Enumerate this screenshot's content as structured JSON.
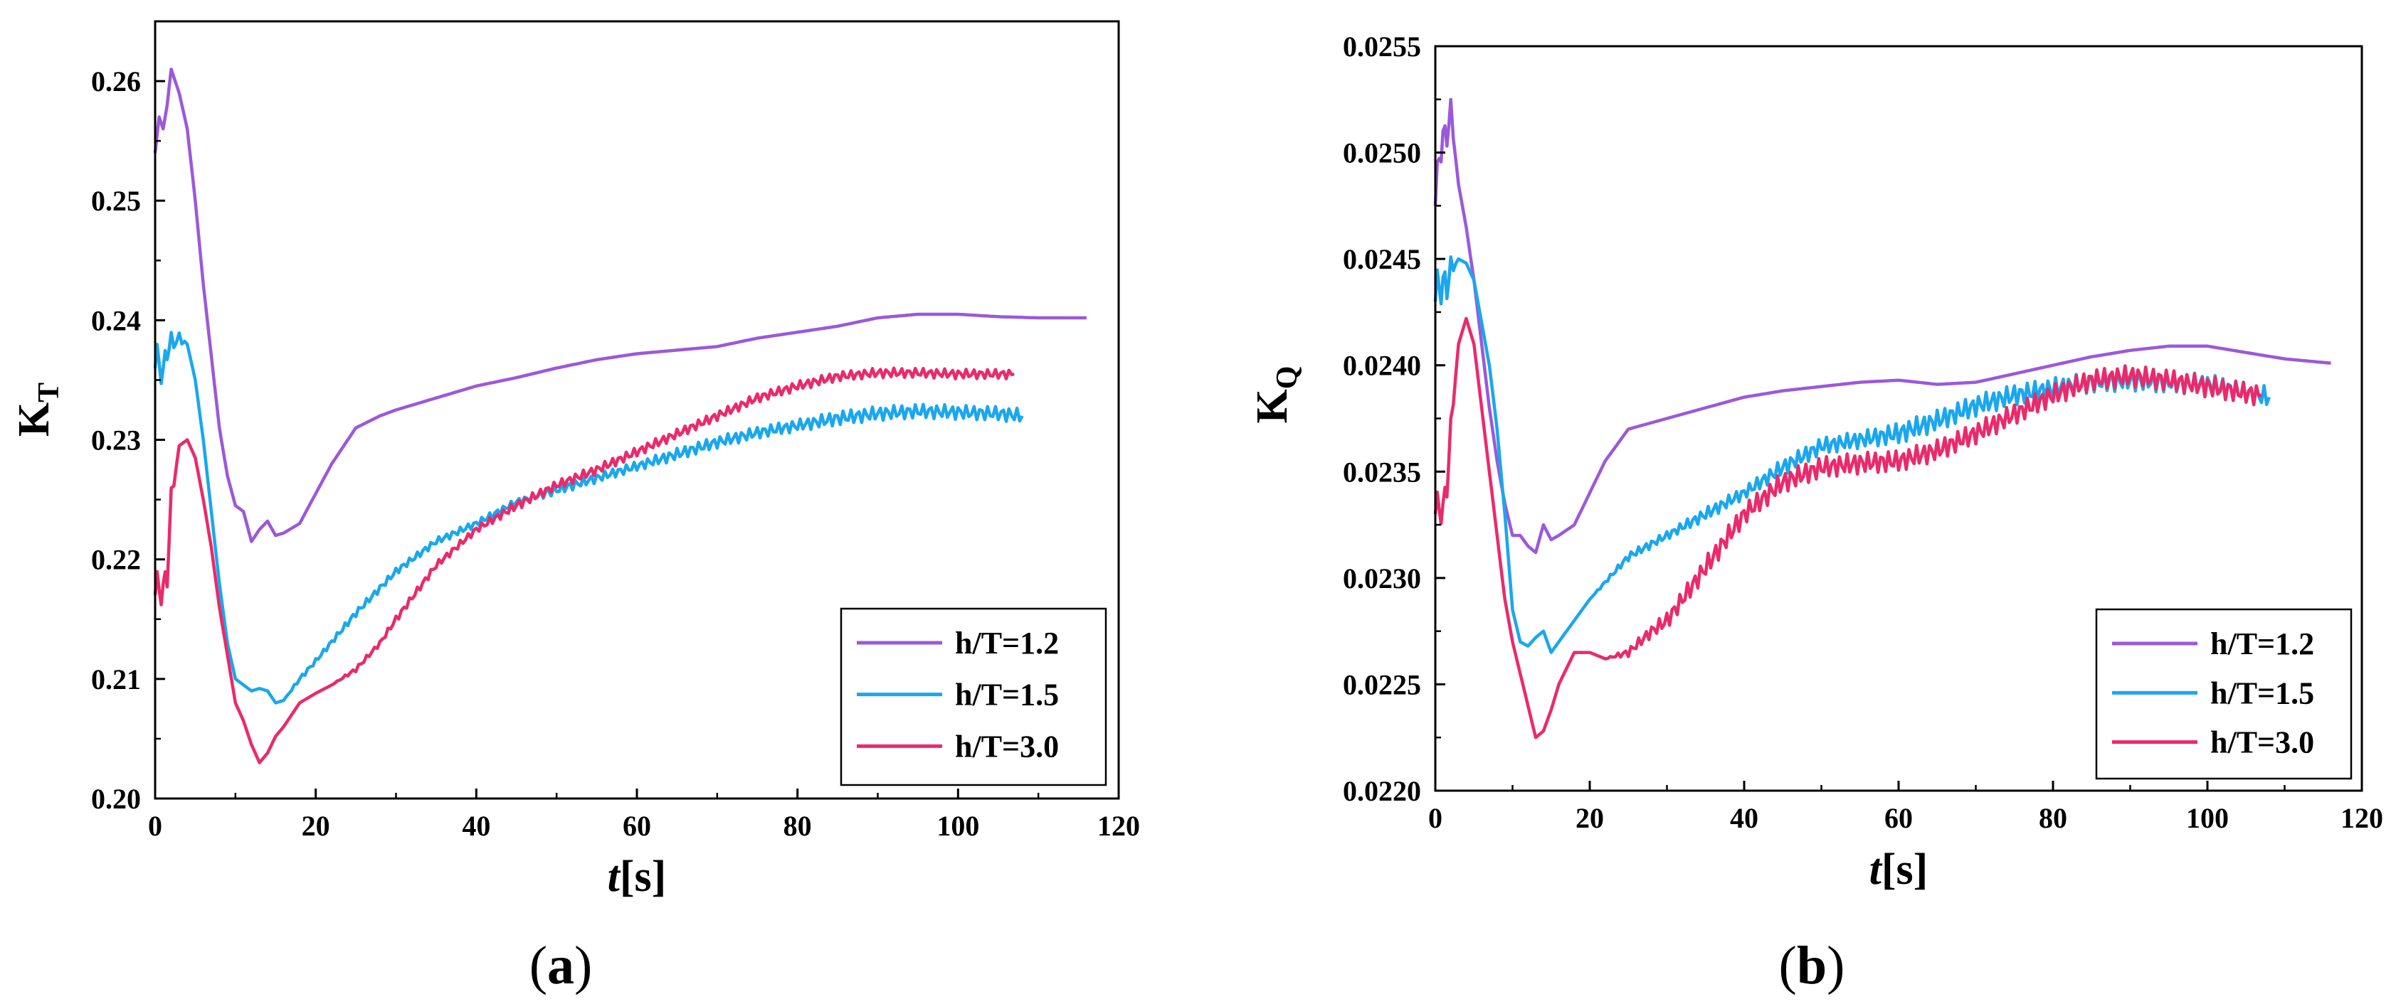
{
  "colors": {
    "h12": "#9b59d9",
    "h15": "#1aa7ee",
    "h30": "#ea2a6b",
    "axis": "#000000"
  },
  "chart_data": [
    {
      "type": "line",
      "panel_label": "(a)",
      "panel_parts": [
        "(",
        "a",
        ")"
      ],
      "xlabel_italic": "t",
      "xlabel_unit": "[s]",
      "ylabel_main": "K",
      "ylabel_sub": "T",
      "xlim": [
        0,
        120
      ],
      "ylim": [
        0.2,
        0.265
      ],
      "xticks": [
        0,
        20,
        40,
        60,
        80,
        100,
        120
      ],
      "xtick_labels": [
        "0",
        "20",
        "40",
        "60",
        "80",
        "100",
        "120"
      ],
      "yticks": [
        0.2,
        0.21,
        0.22,
        0.23,
        0.24,
        0.25,
        0.26
      ],
      "ytick_labels": [
        "0.20",
        "0.21",
        "0.22",
        "0.23",
        "0.24",
        "0.25",
        "0.26"
      ],
      "legend_position": "bottom-right",
      "series": [
        {
          "name": "h/T=1.2",
          "color": "#9b59d9",
          "x": [
            0,
            0.5,
            1,
            1.5,
            2,
            3,
            4,
            5,
            6,
            7,
            8,
            9,
            10,
            11,
            12,
            13,
            14,
            15,
            16,
            18,
            20,
            22,
            25,
            28,
            30,
            35,
            40,
            45,
            50,
            55,
            60,
            65,
            70,
            75,
            80,
            85,
            90,
            95,
            100,
            105,
            110,
            116
          ],
          "y": [
            0.254,
            0.257,
            0.256,
            0.258,
            0.261,
            0.259,
            0.256,
            0.25,
            0.243,
            0.237,
            0.231,
            0.227,
            0.2245,
            0.224,
            0.2215,
            0.2225,
            0.2232,
            0.222,
            0.2222,
            0.223,
            0.2255,
            0.228,
            0.231,
            0.232,
            0.2325,
            0.2335,
            0.2345,
            0.2352,
            0.236,
            0.2367,
            0.2372,
            0.2375,
            0.2378,
            0.2385,
            0.239,
            0.2395,
            0.2402,
            0.2405,
            0.2405,
            0.2403,
            0.2402,
            0.2402
          ],
          "osc": [
            0,
            0,
            0,
            0,
            0,
            0,
            0,
            0,
            0,
            0,
            0,
            0,
            0,
            0,
            0,
            0,
            0,
            0,
            0,
            0,
            0,
            0,
            0,
            0,
            0,
            0,
            0,
            0,
            0,
            0,
            0,
            0,
            0,
            0,
            0,
            0,
            0,
            0,
            0,
            0,
            0,
            0
          ]
        },
        {
          "name": "h/T=1.5",
          "color": "#1aa7ee",
          "x": [
            0,
            0.5,
            1,
            1.5,
            2,
            3,
            4,
            5,
            6,
            7,
            8,
            9,
            10,
            11,
            12,
            13,
            14,
            15,
            16,
            18,
            20,
            25,
            30,
            35,
            40,
            45,
            50,
            55,
            60,
            65,
            70,
            75,
            80,
            85,
            90,
            95,
            100,
            105,
            108
          ],
          "y": [
            0.236,
            0.237,
            0.235,
            0.238,
            0.238,
            0.2385,
            0.238,
            0.235,
            0.23,
            0.224,
            0.218,
            0.213,
            0.21,
            0.2095,
            0.209,
            0.2092,
            0.209,
            0.208,
            0.2082,
            0.21,
            0.2115,
            0.2155,
            0.219,
            0.2215,
            0.223,
            0.2248,
            0.2258,
            0.2268,
            0.2278,
            0.2288,
            0.2298,
            0.2306,
            0.2312,
            0.2318,
            0.2322,
            0.2324,
            0.2323,
            0.2322,
            0.232
          ],
          "osc": [
            0.0015,
            0.0015,
            0.0015,
            0.0015,
            0.001,
            0.0005,
            0,
            0,
            0,
            0,
            0,
            0,
            0,
            0,
            0,
            0,
            0,
            0,
            0,
            0.0002,
            0.0002,
            0.0003,
            0.0003,
            0.0003,
            0.0003,
            0.0003,
            0.0004,
            0.0004,
            0.0004,
            0.0005,
            0.0005,
            0.0005,
            0.0005,
            0.0006,
            0.0006,
            0.0006,
            0.0006,
            0.0006,
            0.0006
          ]
        },
        {
          "name": "h/T=3.0",
          "color": "#ea2a6b",
          "x": [
            0,
            0.5,
            1,
            1.5,
            2,
            3,
            4,
            5,
            6,
            7,
            8,
            9,
            10,
            11,
            12,
            13,
            14,
            15,
            16,
            18,
            20,
            22,
            25,
            28,
            30,
            35,
            40,
            45,
            50,
            55,
            60,
            65,
            70,
            75,
            80,
            85,
            90,
            95,
            100,
            105,
            107
          ],
          "y": [
            0.217,
            0.218,
            0.217,
            0.219,
            0.225,
            0.2295,
            0.23,
            0.2285,
            0.225,
            0.221,
            0.216,
            0.212,
            0.208,
            0.2065,
            0.2045,
            0.203,
            0.2038,
            0.2052,
            0.206,
            0.208,
            0.2088,
            0.2095,
            0.2108,
            0.213,
            0.215,
            0.2195,
            0.2225,
            0.2245,
            0.2262,
            0.2275,
            0.229,
            0.2305,
            0.232,
            0.2335,
            0.2345,
            0.2353,
            0.2356,
            0.2356,
            0.2355,
            0.2355,
            0.2355
          ],
          "osc": [
            0.0015,
            0.0015,
            0.0015,
            0.0015,
            0.001,
            0,
            0,
            0,
            0,
            0,
            0,
            0,
            0,
            0,
            0,
            0,
            0,
            0,
            0,
            0,
            0,
            0,
            0.0002,
            0.0002,
            0.0003,
            0.0003,
            0.0003,
            0.0004,
            0.0004,
            0.0004,
            0.0004,
            0.0004,
            0.0004,
            0.0004,
            0.0004,
            0.0004,
            0.0004,
            0.0004,
            0.0004,
            0.0004,
            0.0004
          ]
        }
      ]
    },
    {
      "type": "line",
      "panel_label": "(b)",
      "panel_parts": [
        "(",
        "b",
        ")"
      ],
      "xlabel_italic": "t",
      "xlabel_unit": "[s]",
      "ylabel_main": "K",
      "ylabel_sub": "Q",
      "xlim": [
        0,
        120
      ],
      "ylim": [
        0.022,
        0.0255
      ],
      "xticks": [
        0,
        20,
        40,
        60,
        80,
        100,
        120
      ],
      "xtick_labels": [
        "0",
        "20",
        "40",
        "60",
        "80",
        "100",
        "120"
      ],
      "yticks": [
        0.022,
        0.0225,
        0.023,
        0.0235,
        0.024,
        0.0245,
        0.025,
        0.0255
      ],
      "ytick_labels": [
        "0.0220",
        "0.0225",
        "0.0230",
        "0.0235",
        "0.0240",
        "0.0245",
        "0.0250",
        "0.0255"
      ],
      "legend_position": "bottom-right",
      "series": [
        {
          "name": "h/T=1.2",
          "color": "#9b59d9",
          "x": [
            0,
            0.5,
            1,
            1.5,
            2,
            3,
            4,
            5,
            6,
            7,
            8,
            9,
            10,
            11,
            12,
            13,
            14,
            15,
            16,
            18,
            20,
            22,
            25,
            28,
            30,
            35,
            40,
            45,
            50,
            55,
            60,
            65,
            70,
            75,
            80,
            85,
            90,
            95,
            100,
            105,
            110,
            116
          ],
          "y": [
            0.02475,
            0.025,
            0.02505,
            0.0251,
            0.0252,
            0.02485,
            0.02465,
            0.0244,
            0.0241,
            0.0238,
            0.02355,
            0.02335,
            0.0232,
            0.0232,
            0.02315,
            0.02312,
            0.02325,
            0.02318,
            0.0232,
            0.02325,
            0.0234,
            0.02355,
            0.0237,
            0.02373,
            0.02375,
            0.0238,
            0.02385,
            0.02388,
            0.0239,
            0.02392,
            0.02393,
            0.02391,
            0.02392,
            0.02396,
            0.024,
            0.02404,
            0.02407,
            0.02409,
            0.02409,
            0.02406,
            0.02403,
            0.02401
          ],
          "osc": [
            8e-05,
            8e-05,
            8e-05,
            8e-05,
            5e-05,
            0,
            0,
            0,
            0,
            0,
            0,
            0,
            0,
            0,
            0,
            0,
            0,
            0,
            0,
            0,
            0,
            0,
            0,
            0,
            0,
            0,
            0,
            0,
            0,
            0,
            0,
            0,
            0,
            0,
            0,
            0,
            0,
            0,
            0,
            0,
            0,
            0
          ]
        },
        {
          "name": "h/T=1.5",
          "color": "#1aa7ee",
          "x": [
            0,
            0.5,
            1,
            1.5,
            2,
            3,
            4,
            5,
            6,
            7,
            8,
            9,
            10,
            11,
            12,
            13,
            14,
            15,
            16,
            18,
            20,
            25,
            30,
            35,
            40,
            45,
            50,
            55,
            60,
            65,
            70,
            75,
            80,
            85,
            90,
            95,
            100,
            105,
            108
          ],
          "y": [
            0.0243,
            0.0244,
            0.02435,
            0.0244,
            0.02445,
            0.0245,
            0.02448,
            0.0244,
            0.0242,
            0.024,
            0.0237,
            0.0233,
            0.02285,
            0.0227,
            0.02268,
            0.02272,
            0.02275,
            0.02265,
            0.0227,
            0.0228,
            0.0229,
            0.0231,
            0.0232,
            0.0233,
            0.0234,
            0.02352,
            0.02362,
            0.02365,
            0.02368,
            0.02374,
            0.02381,
            0.02386,
            0.02389,
            0.02392,
            0.02393,
            0.02392,
            0.02391,
            0.02387,
            0.02385
          ],
          "osc": [
            0.0001,
            0.0001,
            0.0001,
            0.0001,
            6e-05,
            0,
            0,
            0,
            0,
            0,
            0,
            0,
            0,
            0,
            0,
            0,
            0,
            0,
            0,
            0,
            0,
            2e-05,
            2e-05,
            3e-05,
            3e-05,
            4e-05,
            4e-05,
            4e-05,
            5e-05,
            5e-05,
            5e-05,
            5e-05,
            5e-05,
            5e-05,
            5e-05,
            5e-05,
            5e-05,
            5e-05,
            5e-05
          ]
        },
        {
          "name": "h/T=3.0",
          "color": "#ea2a6b",
          "x": [
            0,
            0.5,
            1,
            1.5,
            2,
            3,
            4,
            5,
            6,
            7,
            8,
            9,
            10,
            11,
            12,
            13,
            14,
            15,
            16,
            18,
            20,
            22,
            25,
            28,
            30,
            35,
            40,
            45,
            50,
            55,
            60,
            65,
            70,
            75,
            80,
            85,
            90,
            95,
            100,
            105,
            107
          ],
          "y": [
            0.0233,
            0.02335,
            0.0233,
            0.02345,
            0.0237,
            0.0241,
            0.02422,
            0.0241,
            0.0238,
            0.0235,
            0.0232,
            0.0229,
            0.0227,
            0.02255,
            0.0224,
            0.02225,
            0.02228,
            0.02238,
            0.0225,
            0.02265,
            0.02265,
            0.02262,
            0.02265,
            0.02275,
            0.0228,
            0.02305,
            0.0233,
            0.02345,
            0.02352,
            0.02354,
            0.02355,
            0.0236,
            0.02368,
            0.02377,
            0.02386,
            0.02393,
            0.02395,
            0.02393,
            0.0239,
            0.02387,
            0.02386
          ],
          "osc": [
            8e-05,
            8e-05,
            8e-05,
            8e-05,
            5e-05,
            0,
            0,
            0,
            0,
            0,
            0,
            0,
            0,
            0,
            0,
            0,
            0,
            0,
            0,
            0,
            0,
            0,
            2e-05,
            3e-05,
            4e-05,
            5e-05,
            5e-05,
            5e-05,
            5e-05,
            5e-05,
            5e-05,
            5e-05,
            5e-05,
            5e-05,
            5e-05,
            5e-05,
            5e-05,
            5e-05,
            5e-05,
            5e-05,
            5e-05
          ]
        }
      ]
    }
  ]
}
